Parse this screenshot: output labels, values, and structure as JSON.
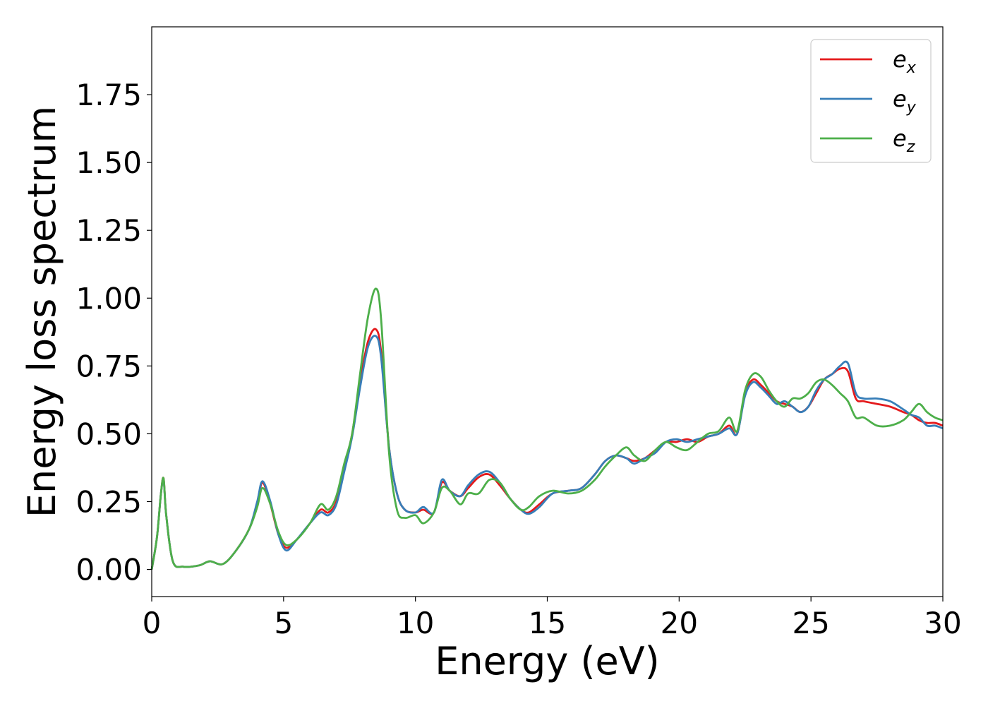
{
  "chart_data": {
    "type": "line",
    "xlabel": "Energy (eV)",
    "ylabel": "Energy loss spectrum",
    "xlim": [
      0,
      30
    ],
    "ylim": [
      -0.1,
      2.0
    ],
    "xticks": [
      0,
      5,
      10,
      15,
      20,
      25,
      30
    ],
    "xtick_labels": [
      "0",
      "5",
      "10",
      "15",
      "20",
      "25",
      "30"
    ],
    "yticks": [
      0.0,
      0.25,
      0.5,
      0.75,
      1.0,
      1.25,
      1.5,
      1.75
    ],
    "ytick_labels": [
      "0.00",
      "0.25",
      "0.50",
      "0.75",
      "1.00",
      "1.25",
      "1.50",
      "1.75"
    ],
    "grid": false,
    "legend_position": "top-right",
    "x": [
      0,
      0.2,
      0.35,
      0.45,
      0.55,
      0.8,
      1.2,
      1.8,
      2.2,
      2.7,
      3.2,
      3.7,
      4.0,
      4.2,
      4.5,
      4.8,
      5.1,
      5.5,
      6.0,
      6.4,
      6.7,
      7.0,
      7.3,
      7.6,
      7.9,
      8.2,
      8.5,
      8.7,
      9.0,
      9.3,
      9.6,
      10.0,
      10.3,
      10.7,
      11.0,
      11.3,
      11.7,
      12.0,
      12.4,
      12.8,
      13.2,
      13.6,
      14.0,
      14.3,
      14.7,
      15.2,
      15.8,
      16.3,
      16.8,
      17.2,
      17.6,
      18.0,
      18.3,
      18.7,
      19.1,
      19.5,
      19.9,
      20.3,
      20.7,
      21.1,
      21.5,
      21.9,
      22.2,
      22.5,
      22.8,
      23.1,
      23.4,
      23.7,
      24.0,
      24.3,
      24.6,
      24.9,
      25.2,
      25.5,
      25.8,
      26.1,
      26.4,
      26.7,
      27.0,
      27.5,
      28.0,
      28.5,
      28.8,
      29.1,
      29.4,
      29.7,
      30.0
    ],
    "series": [
      {
        "name": "e_x",
        "color": "#e41a1c",
        "values": [
          0.0,
          0.12,
          0.28,
          0.335,
          0.2,
          0.03,
          0.01,
          0.015,
          0.03,
          0.02,
          0.07,
          0.15,
          0.24,
          0.32,
          0.24,
          0.13,
          0.08,
          0.11,
          0.17,
          0.22,
          0.21,
          0.25,
          0.37,
          0.5,
          0.69,
          0.84,
          0.885,
          0.8,
          0.45,
          0.28,
          0.22,
          0.21,
          0.22,
          0.21,
          0.32,
          0.29,
          0.27,
          0.3,
          0.34,
          0.35,
          0.31,
          0.26,
          0.22,
          0.21,
          0.24,
          0.28,
          0.29,
          0.3,
          0.35,
          0.4,
          0.42,
          0.41,
          0.4,
          0.41,
          0.44,
          0.47,
          0.47,
          0.48,
          0.47,
          0.49,
          0.5,
          0.53,
          0.5,
          0.65,
          0.7,
          0.68,
          0.65,
          0.62,
          0.61,
          0.6,
          0.58,
          0.6,
          0.65,
          0.7,
          0.72,
          0.74,
          0.73,
          0.63,
          0.62,
          0.61,
          0.6,
          0.58,
          0.57,
          0.55,
          0.54,
          0.54,
          0.53
        ]
      },
      {
        "name": "e_y",
        "color": "#377eb8",
        "values": [
          0.0,
          0.12,
          0.28,
          0.33,
          0.2,
          0.03,
          0.01,
          0.015,
          0.03,
          0.02,
          0.07,
          0.15,
          0.25,
          0.325,
          0.25,
          0.13,
          0.07,
          0.11,
          0.17,
          0.21,
          0.2,
          0.24,
          0.36,
          0.49,
          0.67,
          0.82,
          0.86,
          0.78,
          0.45,
          0.28,
          0.22,
          0.21,
          0.23,
          0.21,
          0.33,
          0.29,
          0.27,
          0.31,
          0.35,
          0.36,
          0.32,
          0.26,
          0.22,
          0.205,
          0.23,
          0.28,
          0.29,
          0.3,
          0.35,
          0.4,
          0.42,
          0.41,
          0.39,
          0.41,
          0.43,
          0.47,
          0.48,
          0.47,
          0.48,
          0.49,
          0.5,
          0.52,
          0.5,
          0.64,
          0.69,
          0.67,
          0.64,
          0.61,
          0.62,
          0.6,
          0.58,
          0.6,
          0.66,
          0.7,
          0.72,
          0.75,
          0.76,
          0.65,
          0.63,
          0.63,
          0.62,
          0.59,
          0.57,
          0.56,
          0.53,
          0.53,
          0.52
        ]
      },
      {
        "name": "e_z",
        "color": "#4daf4a",
        "values": [
          0.0,
          0.12,
          0.28,
          0.335,
          0.2,
          0.03,
          0.01,
          0.015,
          0.03,
          0.02,
          0.07,
          0.15,
          0.23,
          0.3,
          0.24,
          0.14,
          0.09,
          0.11,
          0.17,
          0.24,
          0.22,
          0.27,
          0.39,
          0.5,
          0.72,
          0.93,
          1.035,
          0.92,
          0.43,
          0.22,
          0.19,
          0.2,
          0.17,
          0.21,
          0.3,
          0.29,
          0.24,
          0.28,
          0.28,
          0.33,
          0.32,
          0.26,
          0.22,
          0.23,
          0.27,
          0.29,
          0.28,
          0.29,
          0.33,
          0.38,
          0.42,
          0.45,
          0.42,
          0.4,
          0.44,
          0.47,
          0.45,
          0.44,
          0.47,
          0.5,
          0.51,
          0.56,
          0.51,
          0.66,
          0.72,
          0.71,
          0.66,
          0.62,
          0.6,
          0.63,
          0.63,
          0.65,
          0.69,
          0.7,
          0.68,
          0.65,
          0.62,
          0.56,
          0.56,
          0.53,
          0.53,
          0.55,
          0.58,
          0.61,
          0.58,
          0.56,
          0.55
        ]
      }
    ],
    "legend": [
      {
        "base": "e",
        "sub": "x"
      },
      {
        "base": "e",
        "sub": "y"
      },
      {
        "base": "e",
        "sub": "z"
      }
    ]
  }
}
